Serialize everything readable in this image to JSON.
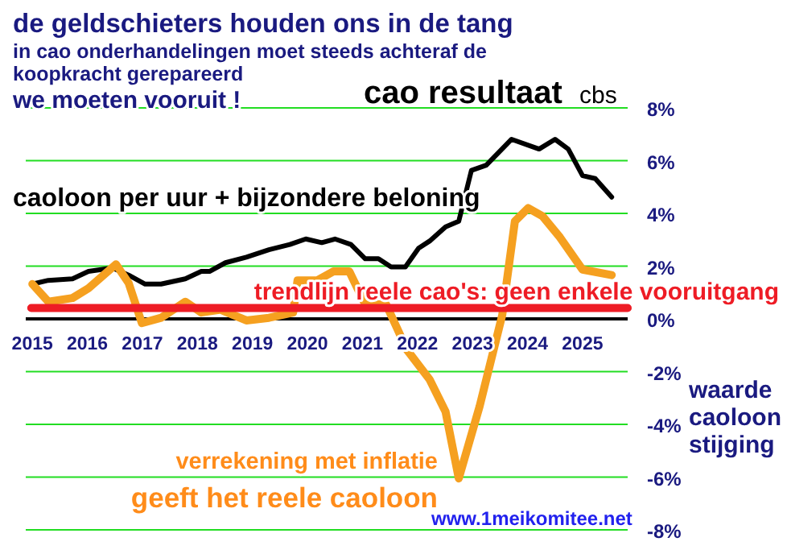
{
  "chart_data": {
    "type": "line",
    "title": "de geldschieters houden ons in de tang",
    "subtitle": "in cao onderhandelingen moet steeds achteraf de koopkracht gerepareerd",
    "ylabel": "waarde caoloon stijging",
    "annotations": [
      "we moeten vooruit !",
      "cao resultaat",
      "cbs",
      "www.1meikomitee.net"
    ],
    "xlim": [
      2014.88,
      2025.82
    ],
    "xticks": [
      2015,
      2016,
      2017,
      2018,
      2019,
      2020,
      2021,
      2022,
      2023,
      2024,
      2025
    ],
    "ylim": [
      -8,
      8
    ],
    "yticks": [
      {
        "value": 8,
        "label": "8%"
      },
      {
        "value": 6,
        "label": "6%"
      },
      {
        "value": 4,
        "label": "4%"
      },
      {
        "value": 2,
        "label": "2%"
      },
      {
        "value": 0,
        "label": "0%"
      },
      {
        "value": -2,
        "label": "-2%"
      },
      {
        "value": -4,
        "label": "-4%"
      },
      {
        "value": -6,
        "label": "-6%"
      },
      {
        "value": -8,
        "label": "-8%"
      }
    ],
    "grid": "y",
    "legend": false,
    "marker": "none",
    "line_style": "solid",
    "series": [
      {
        "name": "caoloon per uur + bijzondere beloning",
        "color": "#000000",
        "x": [
          2015.0,
          2015.29,
          2015.73,
          2016.02,
          2016.46,
          2016.75,
          2017.05,
          2017.34,
          2017.78,
          2018.07,
          2018.22,
          2018.51,
          2018.89,
          2019.3,
          2019.68,
          2019.97,
          2020.26,
          2020.5,
          2020.79,
          2021.05,
          2021.29,
          2021.52,
          2021.78,
          2022.02,
          2022.22,
          2022.51,
          2022.75,
          2022.98,
          2023.25,
          2023.71,
          2024.21,
          2024.5,
          2024.74,
          2025.0,
          2025.23,
          2025.53
        ],
        "values": [
          1.32,
          1.46,
          1.52,
          1.8,
          1.93,
          1.66,
          1.32,
          1.32,
          1.52,
          1.8,
          1.8,
          2.13,
          2.34,
          2.62,
          2.82,
          3.03,
          2.89,
          3.03,
          2.82,
          2.28,
          2.28,
          1.97,
          1.97,
          2.68,
          2.95,
          3.49,
          3.7,
          5.63,
          5.83,
          6.81,
          6.44,
          6.81,
          6.44,
          5.43,
          5.32,
          4.62
        ]
      },
      {
        "name": "verrekening met inflatie\ngeeft het reele caoloon",
        "color": "#f5a020",
        "x": [
          2015.0,
          2015.29,
          2015.73,
          2016.02,
          2016.52,
          2016.75,
          2016.99,
          2017.34,
          2017.78,
          2018.07,
          2018.42,
          2018.89,
          2019.3,
          2019.74,
          2019.82,
          2020.18,
          2020.47,
          2020.76,
          2021.05,
          2021.43,
          2021.81,
          2022.22,
          2022.51,
          2022.75,
          2023.13,
          2023.54,
          2023.77,
          2024.01,
          2024.27,
          2024.59,
          2025.0,
          2025.53
        ],
        "values": [
          1.32,
          0.65,
          0.79,
          1.16,
          2.07,
          1.36,
          -0.16,
          0.04,
          0.65,
          0.24,
          0.35,
          -0.06,
          0.04,
          0.24,
          1.46,
          1.46,
          1.8,
          1.8,
          0.55,
          0.55,
          -1.18,
          -2.3,
          -3.52,
          -6.05,
          -3.31,
          0.14,
          3.7,
          4.2,
          3.9,
          3.09,
          1.87,
          1.66
        ]
      },
      {
        "name": "trendlijn  reele cao's: geen enkele vooruitgang",
        "color": "#ee1c25",
        "x": [
          2014.98,
          2025.82
        ],
        "values": [
          0.41,
          0.41
        ]
      }
    ]
  }
}
